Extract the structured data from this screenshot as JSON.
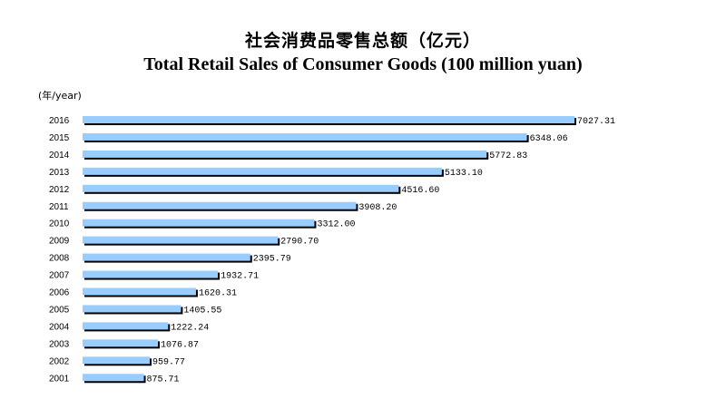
{
  "title": "社会消费品零售总额（亿元）",
  "subtitle": "Total Retail Sales of Consumer Goods (100 million yuan)",
  "unit_label": "(年/year)",
  "colors": {
    "bar": "#99ccff",
    "bar_shadow": "#000000"
  },
  "chart_data": {
    "type": "bar",
    "orientation": "horizontal",
    "title": "社会消费品零售总额（亿元）",
    "subtitle": "Total Retail Sales of Consumer Goods (100 million yuan)",
    "ylabel": "(年/year)",
    "xlabel": "",
    "grid": false,
    "categories": [
      "2016",
      "2015",
      "2014",
      "2013",
      "2012",
      "2011",
      "2010",
      "2009",
      "2008",
      "2007",
      "2006",
      "2005",
      "2004",
      "2003",
      "2002",
      "2001"
    ],
    "values": [
      7027.31,
      6348.06,
      5772.83,
      5133.1,
      4516.6,
      3908.2,
      3312.0,
      2790.7,
      2395.79,
      1932.71,
      1620.31,
      1405.55,
      1222.24,
      1076.87,
      959.77,
      875.71
    ],
    "value_labels": [
      "7027.31",
      "6348.06",
      "5772.83",
      "5133.10",
      "4516.60",
      "3908.20",
      "3312.00",
      "2790.70",
      "2395.79",
      "1932.71",
      "1620.31",
      "1405.55",
      "1222.24",
      "1076.87",
      "959.77",
      "875.71"
    ],
    "xlim": [
      0,
      7027.31
    ]
  }
}
